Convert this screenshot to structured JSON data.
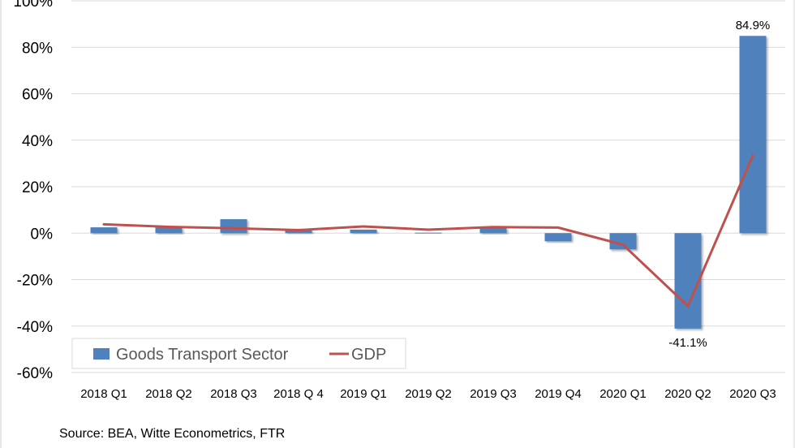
{
  "chart_data": {
    "type": "bar",
    "title": "",
    "xlabel": "",
    "ylabel": "",
    "ylim": [
      -60,
      100
    ],
    "yticks": [
      100,
      80,
      60,
      40,
      20,
      0,
      -20,
      -40,
      -60
    ],
    "ytick_labels": [
      "100%",
      "80%",
      "60%",
      "40%",
      "20%",
      "0%",
      "-20%",
      "-40%",
      "-60%"
    ],
    "grid": true,
    "legend_position": "bottom-left",
    "categories": [
      "2018 Q1",
      "2018 Q2",
      "2018 Q3",
      "2018 Q 4",
      "2019 Q1",
      "2019 Q2",
      "2019 Q3",
      "2019 Q4",
      "2020 Q1",
      "2020 Q2",
      "2020 Q3"
    ],
    "series": [
      {
        "name": "Goods Transport Sector",
        "type": "bar",
        "color": "#4f81bd",
        "values": [
          2.5,
          2.5,
          6.0,
          1.5,
          1.5,
          0.2,
          2.5,
          -3.5,
          -7.0,
          -41.1,
          84.9
        ]
      },
      {
        "name": "GDP",
        "type": "line",
        "color": "#c0504d",
        "values": [
          3.8,
          2.7,
          2.1,
          1.3,
          2.9,
          1.5,
          2.6,
          2.4,
          -5.0,
          -31.4,
          33.4
        ]
      }
    ],
    "data_labels": [
      {
        "category": "2020 Q2",
        "series": "Goods Transport Sector",
        "text": "-41.1%"
      },
      {
        "category": "2020 Q3",
        "series": "Goods Transport Sector",
        "text": "84.9%"
      }
    ]
  },
  "source_note": "Source: BEA, Witte Econometrics, FTR"
}
